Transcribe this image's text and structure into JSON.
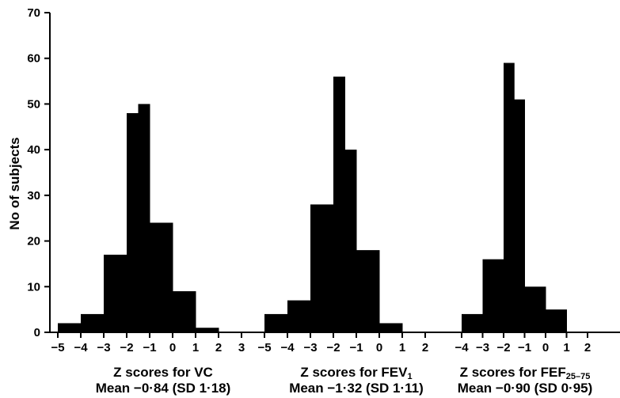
{
  "chart_data": {
    "type": "bar",
    "ylabel": "No of subjects",
    "ylim": [
      0,
      70
    ],
    "yticks": [
      0,
      10,
      20,
      30,
      40,
      50,
      60,
      70
    ],
    "grid": false,
    "legend": "none",
    "bar_color": "#000000",
    "panels": [
      {
        "id": "vc",
        "title_main": "Z scores for VC",
        "title_sub": "",
        "summary": "Mean −0·84 (SD 1·18)",
        "x_ticks": [
          "−5",
          "−4",
          "−3",
          "−2",
          "−1",
          "0",
          "1",
          "2",
          "3"
        ],
        "bins": [
          [
            -5,
            -4
          ],
          [
            -4,
            -3
          ],
          [
            -3,
            -2
          ],
          [
            -2,
            -1.5
          ],
          [
            -1.5,
            -1
          ],
          [
            -1,
            0
          ],
          [
            0,
            1
          ],
          [
            1,
            2
          ],
          [
            2,
            3
          ]
        ],
        "values": [
          2,
          4,
          17,
          48,
          50,
          24,
          9,
          1,
          0
        ]
      },
      {
        "id": "fev1",
        "title_main": "Z scores for FEV",
        "title_sub": "1",
        "summary": "Mean −1·32 (SD 1·11)",
        "x_ticks": [
          "−5",
          "−4",
          "−3",
          "−2",
          "−1",
          "0",
          "1",
          "2"
        ],
        "bins": [
          [
            -5,
            -4
          ],
          [
            -4,
            -3
          ],
          [
            -3,
            -2
          ],
          [
            -2,
            -1.5
          ],
          [
            -1.5,
            -1
          ],
          [
            -1,
            0
          ],
          [
            0,
            1
          ],
          [
            1,
            2
          ]
        ],
        "values": [
          4,
          7,
          28,
          56,
          40,
          18,
          2,
          0
        ]
      },
      {
        "id": "fef",
        "title_main": "Z scores for FEF",
        "title_sub": "25–75",
        "summary": "Mean −0·90 (SD 0·95)",
        "x_ticks": [
          "−4",
          "−3",
          "−2",
          "−1",
          "0",
          "1",
          "2"
        ],
        "bins": [
          [
            -4,
            -3
          ],
          [
            -3,
            -2
          ],
          [
            -2,
            -1.5
          ],
          [
            -1.5,
            -1
          ],
          [
            -1,
            0
          ],
          [
            0,
            1
          ],
          [
            1,
            2
          ]
        ],
        "values": [
          4,
          16,
          59,
          51,
          10,
          5,
          0
        ]
      }
    ]
  }
}
